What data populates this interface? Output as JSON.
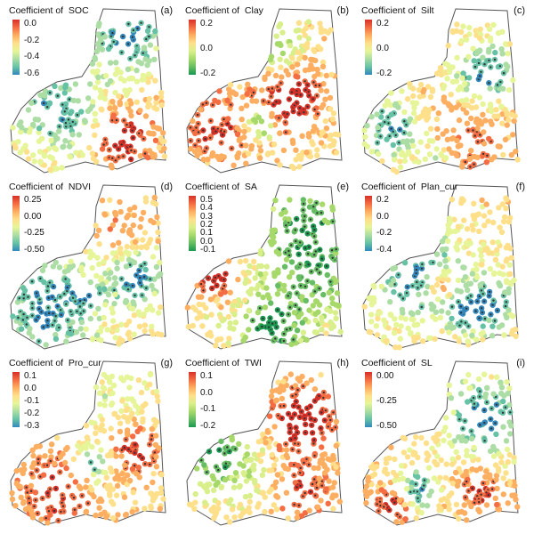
{
  "map": {
    "panels": [
      {
        "label": "(a)",
        "title": "Coefficient of  SOC",
        "ticks": [
          "0.0",
          "-0.2",
          "-0.4",
          "-0.6"
        ],
        "scale": "spectral"
      },
      {
        "label": "(b)",
        "title": "Coefficient of  Clay",
        "ticks": [
          "0.2",
          "0.0",
          "-0.2"
        ],
        "scale": "rdylgn"
      },
      {
        "label": "(c)",
        "title": "Coefficient of  Silt",
        "ticks": [
          "0.2",
          "0.0",
          "-0.2"
        ],
        "scale": "spectral"
      },
      {
        "label": "(d)",
        "title": "Coefficient of  NDVI",
        "ticks": [
          "0.25",
          "0.00",
          "-0.25",
          "-0.50"
        ],
        "scale": "spectral"
      },
      {
        "label": "(e)",
        "title": "Coefficient of  SA",
        "ticks": [
          "0.5",
          "0.4",
          "0.3",
          "0.2",
          "0.1",
          "0.0",
          "-0.1"
        ],
        "scale": "rdylgn"
      },
      {
        "label": "(f)",
        "title": "Coefficient of  Plan_cur",
        "ticks": [
          "0.2",
          "0.0",
          "-0.2",
          "-0.4"
        ],
        "scale": "spectral"
      },
      {
        "label": "(g)",
        "title": "Coefficient of  Pro_cur",
        "ticks": [
          "0.1",
          "0.0",
          "-0.1",
          "-0.2",
          "-0.3"
        ],
        "scale": "spectral"
      },
      {
        "label": "(h)",
        "title": "Coefficient of  TWI",
        "ticks": [
          "0.1",
          "0.0",
          "-0.1",
          "-0.2"
        ],
        "scale": "rdylgn"
      },
      {
        "label": "(i)",
        "title": "Coefficient of  SL",
        "ticks": [
          "0.00",
          "-0.25",
          "-0.50"
        ],
        "scale": "spectral"
      }
    ]
  },
  "colors": {
    "spectral": [
      "#d73027",
      "#f46d43",
      "#fdae61",
      "#fee08b",
      "#e6f598",
      "#abdda4",
      "#66c2a5",
      "#3288bd"
    ],
    "rdylgn": [
      "#d73027",
      "#f46d43",
      "#fdae61",
      "#fee08b",
      "#d9ef8b",
      "#a6d96a",
      "#66bd63",
      "#1a9850"
    ],
    "outline": "#555555",
    "signif_dot": "#333333"
  }
}
